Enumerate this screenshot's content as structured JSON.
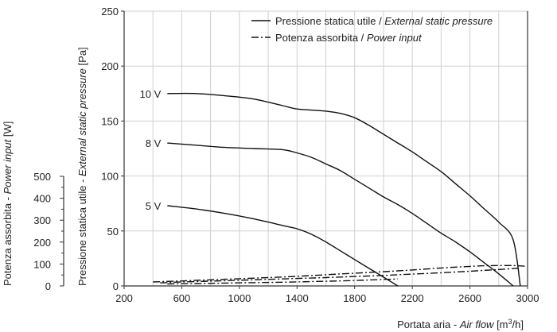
{
  "chart_data": {
    "type": "line",
    "title": "",
    "xlabel": {
      "normal": "Portata aria - ",
      "italic": "Air flow",
      "unit_pre": " [m",
      "unit_sup": "3",
      "unit_post": "/h]"
    },
    "ylabel_left_outer": {
      "normal": "Potenza assorbita - ",
      "italic": "Power input",
      "unit": " [W]"
    },
    "ylabel_left_inner": {
      "normal": "Pressione statica utile - ",
      "italic": "External static pressure",
      "unit": " [Pa]"
    },
    "x_ticks": [
      200,
      600,
      1000,
      1400,
      1800,
      2200,
      2600,
      3000
    ],
    "x_tick_labels": [
      "200",
      "600",
      "1000",
      "1400",
      "1800",
      "2200",
      "2600",
      "3000"
    ],
    "xlim": [
      200,
      3000
    ],
    "y_pressure_ticks": [
      0,
      50,
      100,
      150,
      200,
      250
    ],
    "y_pressure_tick_labels": [
      "0",
      "50",
      "100",
      "150",
      "200",
      "250"
    ],
    "y_pressure_lim": [
      0,
      250
    ],
    "y_power_ticks": [
      0,
      100,
      200,
      300,
      400,
      500
    ],
    "y_power_tick_labels": [
      "0",
      "100",
      "200",
      "300",
      "400",
      "500"
    ],
    "y_power_lim": [
      0,
      500
    ],
    "grid": true,
    "legend": {
      "position": "top-right",
      "entries": [
        {
          "style": "solid",
          "normal": "Pressione statica utile / ",
          "italic": "External static pressure"
        },
        {
          "style": "dashdot",
          "normal": "Potenza assorbita / ",
          "italic": "Power input"
        }
      ]
    },
    "series": [
      {
        "name": "10 V",
        "quantity": "pressure",
        "style": "solid",
        "x": [
          500,
          700,
          900,
          1100,
          1300,
          1400,
          1500,
          1600,
          1700,
          1800,
          1900,
          2000,
          2100,
          2200,
          2300,
          2400,
          2500,
          2600,
          2700,
          2800,
          2900,
          2950
        ],
        "y": [
          175,
          175,
          173,
          170,
          164,
          161,
          160,
          159,
          157,
          153,
          146,
          138,
          130,
          122,
          113,
          104,
          93,
          82,
          70,
          58,
          42,
          0
        ]
      },
      {
        "name": "8 V",
        "quantity": "pressure",
        "style": "solid",
        "x": [
          500,
          700,
          900,
          1100,
          1300,
          1400,
          1500,
          1600,
          1700,
          1800,
          1900,
          2000,
          2100,
          2200,
          2300,
          2400,
          2500,
          2600,
          2700,
          2800,
          2900
        ],
        "y": [
          130,
          128,
          126,
          125,
          124,
          121,
          117,
          111,
          105,
          97,
          89,
          81,
          74,
          66,
          57,
          48,
          40,
          31,
          21,
          11,
          0
        ]
      },
      {
        "name": "5 V",
        "quantity": "pressure",
        "style": "solid",
        "x": [
          500,
          700,
          900,
          1100,
          1300,
          1400,
          1500,
          1600,
          1700,
          1800,
          1900,
          2000,
          2100
        ],
        "y": [
          73,
          70,
          66,
          61,
          55,
          52,
          47,
          40,
          32,
          24,
          16,
          8,
          0
        ]
      },
      {
        "name": "10 V",
        "quantity": "power",
        "style": "dashdot",
        "x": [
          400,
          600,
          800,
          1000,
          1200,
          1400,
          1600,
          1800,
          2000,
          2200,
          2400,
          2600,
          2700,
          2800,
          2900,
          2980
        ],
        "y": [
          18,
          23,
          28,
          33,
          38,
          44,
          51,
          58,
          65,
          73,
          82,
          89,
          92,
          93,
          93,
          90
        ]
      },
      {
        "name": "8 V",
        "quantity": "power",
        "style": "dashdot",
        "x": [
          450,
          600,
          800,
          1000,
          1200,
          1400,
          1600,
          1800,
          2000,
          2200,
          2400,
          2600,
          2800,
          2950
        ],
        "y": [
          14,
          18,
          22,
          26,
          30,
          34,
          38,
          43,
          48,
          54,
          60,
          67,
          75,
          81
        ]
      },
      {
        "name": "5 V",
        "quantity": "power",
        "style": "dashdot",
        "x": [
          500,
          700,
          900,
          1100,
          1300,
          1500,
          1700,
          1900,
          2100
        ],
        "y": [
          9,
          11,
          13,
          15,
          17,
          20,
          23,
          27,
          32
        ]
      }
    ],
    "curve_labels": [
      {
        "text": "10 V",
        "x": 500,
        "y": 175
      },
      {
        "text": "8 V",
        "x": 500,
        "y": 130
      },
      {
        "text": "5 V",
        "x": 500,
        "y": 73
      }
    ]
  }
}
